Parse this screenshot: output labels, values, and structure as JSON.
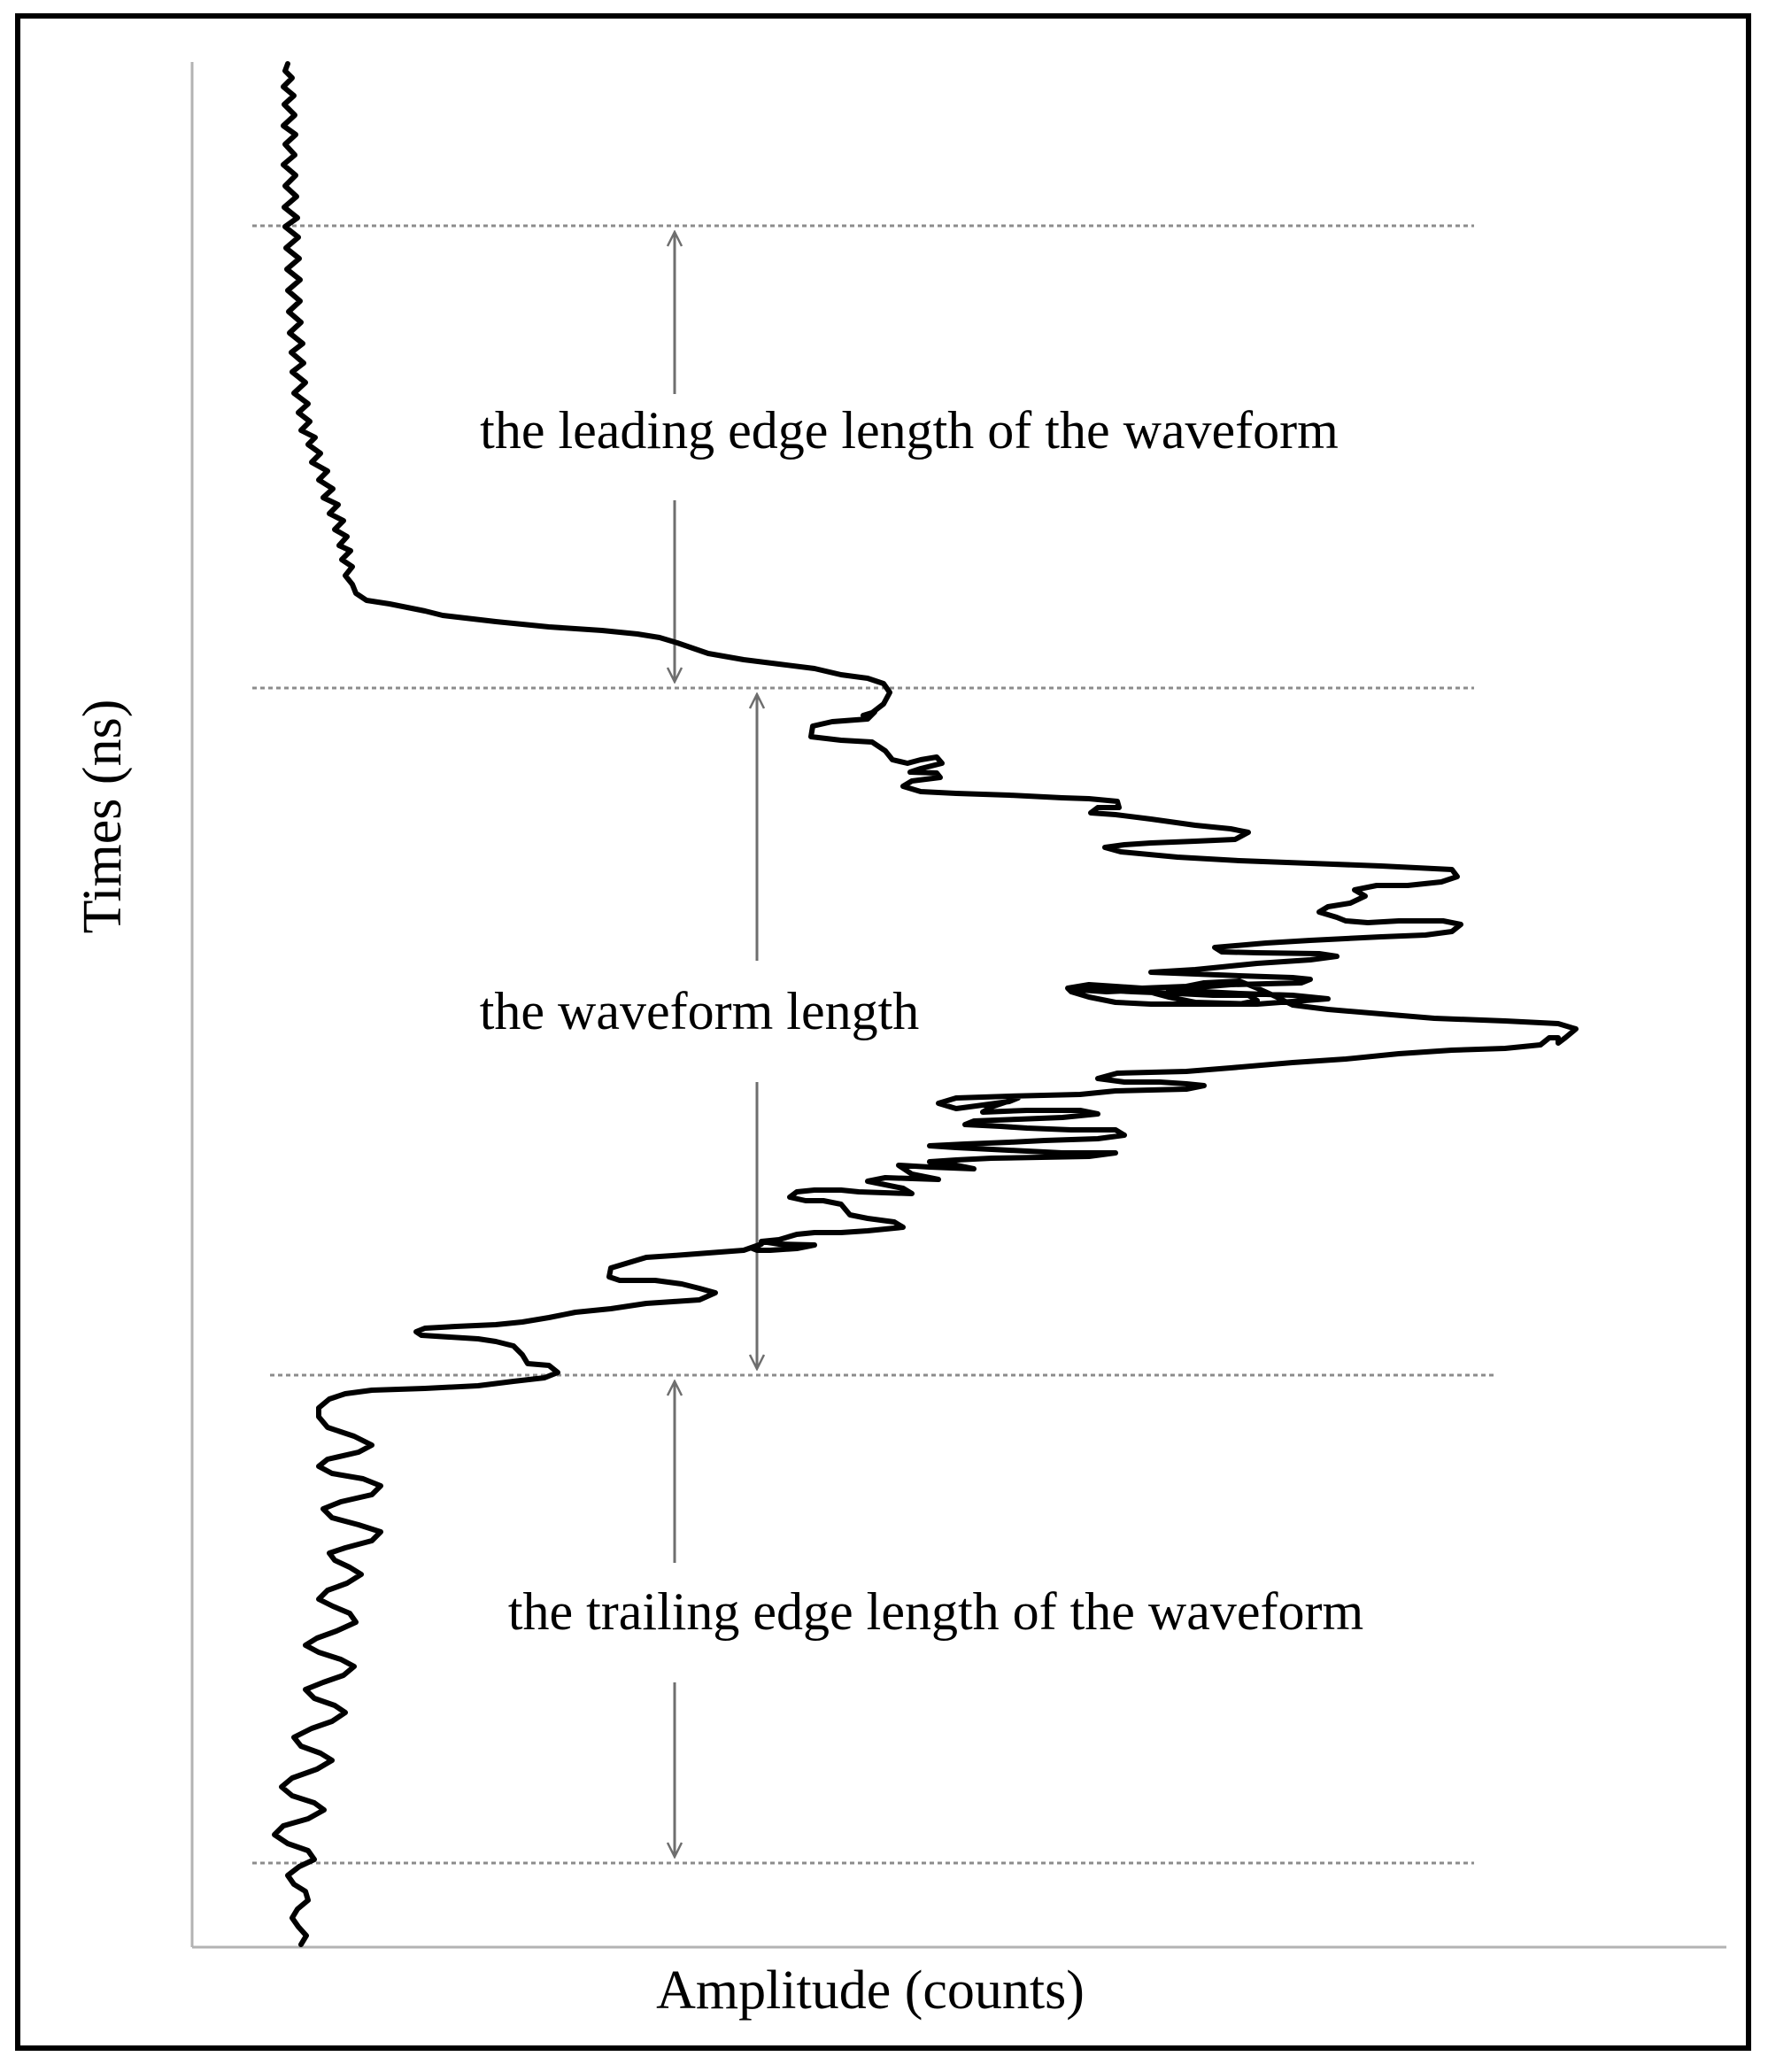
{
  "figure": {
    "y_axis_label": "Times (ns)",
    "x_axis_label": "Amplitude (counts)",
    "annotations": {
      "leading": "the leading edge length of the waveform",
      "waveform": "the waveform length",
      "trailing": "the trailing edge length of the waveform"
    }
  },
  "colors": {
    "waveform": "#000000",
    "frame": "#000000",
    "axis": "#b3b3b3",
    "guide_lines": "#8c8c8c",
    "arrows": "#6e6e6e"
  }
}
